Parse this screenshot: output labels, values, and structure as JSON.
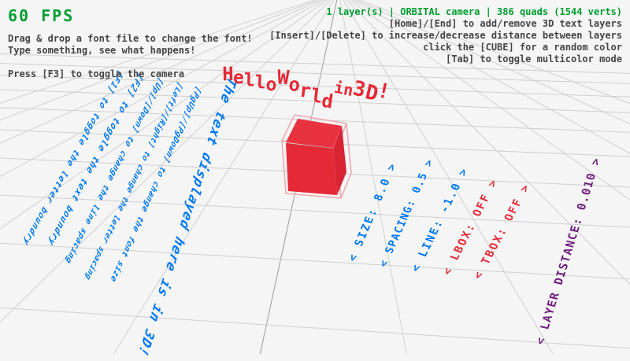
{
  "hud": {
    "fps": "60 FPS",
    "left_help": [
      "Drag & drop a font file to change the font!",
      "Type something, see what happens!",
      "Press [F3] to toggle the camera"
    ],
    "status_line": "1 layer(s) | ORBITAL camera |  386 quads (1544 verts)",
    "right_help": [
      "[Home]/[End] to add/remove 3D text layers",
      "[Insert]/[Delete] to increase/decrease distance between layers",
      "click the [CUBE] for a random color",
      "[Tab] to toggle multicolor mode"
    ]
  },
  "scene": {
    "title_3d": {
      "text": "Hello World in 3D!",
      "color": "#e62937"
    },
    "ground_big_text": "The text displayed here is in 3D!",
    "ground_help_lines": [
      "[F1] to toggle the letter boundry",
      "[F2] to toggle the text boundry",
      "[Up]/[Down] to change the line spacing",
      "[Left]/[Right] to change the letter spacing",
      "[PgUp]/[PgDown] to change the font size"
    ],
    "options": [
      {
        "id": "size",
        "label": "< SIZE: 8.0 >",
        "color": "#0079f1"
      },
      {
        "id": "spacing",
        "label": "< SPACING: 0.5 >",
        "color": "#0079f1"
      },
      {
        "id": "line",
        "label": "< LINE: -1.0 >",
        "color": "#0079f1"
      },
      {
        "id": "lbox",
        "label": "< LBOX: OFF >",
        "color": "#e62937"
      },
      {
        "id": "tbox",
        "label": "< TBOX: OFF >",
        "color": "#e62937"
      },
      {
        "id": "layer",
        "label": "< LAYER DISTANCE: 0.010 >",
        "color": "#701f7e"
      }
    ],
    "cube": {
      "name": "cube",
      "color": "#e62937"
    }
  },
  "colors": {
    "background": "#f5f5f5",
    "fps_green": "#009e2f",
    "hud_gray": "#464646",
    "text_blue": "#0079f1",
    "text_red": "#e62937",
    "text_purple": "#701f7e",
    "grid_line": "#cfcfcf",
    "grid_axis": "#9a9a9a",
    "cube_wire": "#efaab1"
  }
}
